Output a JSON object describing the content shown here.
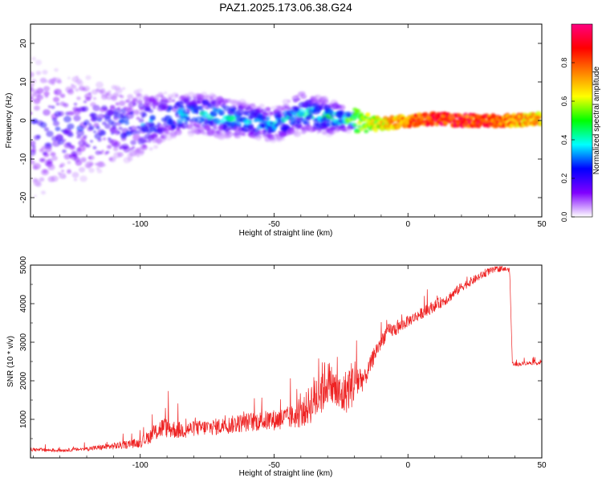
{
  "title": "PAZ1.2025.173.06.38.G24",
  "colors": {
    "snr_line": "#ee2222",
    "axis": "#000000"
  },
  "chart_data": [
    {
      "id": "spectrogram",
      "type": "heatmap",
      "xlabel": "Height of straight line (km)",
      "ylabel": "Frequency (Hz)",
      "xlim": [
        -141,
        50
      ],
      "ylim": [
        -25,
        25
      ],
      "xticks": [
        -100,
        -50,
        0,
        50
      ],
      "yticks": [
        -20,
        -10,
        0,
        10,
        20
      ],
      "grid": false,
      "colorbar": {
        "label": "Normalized spectral amplitude",
        "range": [
          0,
          1
        ],
        "ticks": [
          0.0,
          0.2,
          0.4,
          0.6,
          0.8
        ],
        "colormap": [
          "#ffffff",
          "#8000ff",
          "#0000ff",
          "#00ffff",
          "#00ff00",
          "#ffff00",
          "#ff8000",
          "#ff0000",
          "#ff0080"
        ]
      },
      "band": [
        {
          "x": -140,
          "center": -2,
          "halfwidth": 22,
          "peak": 0.22
        },
        {
          "x": -120,
          "center": -2,
          "halfwidth": 16,
          "peak": 0.24
        },
        {
          "x": -100,
          "center": -1,
          "halfwidth": 10,
          "peak": 0.3
        },
        {
          "x": -90,
          "center": 1,
          "halfwidth": 7,
          "peak": 0.35
        },
        {
          "x": -80,
          "center": 2,
          "halfwidth": 6,
          "peak": 0.38
        },
        {
          "x": -70,
          "center": 1,
          "halfwidth": 6,
          "peak": 0.4
        },
        {
          "x": -60,
          "center": 0,
          "halfwidth": 5,
          "peak": 0.4
        },
        {
          "x": -50,
          "center": -1,
          "halfwidth": 5,
          "peak": 0.38
        },
        {
          "x": -40,
          "center": 2,
          "halfwidth": 6,
          "peak": 0.4
        },
        {
          "x": -30,
          "center": 1,
          "halfwidth": 5,
          "peak": 0.45
        },
        {
          "x": -20,
          "center": 0,
          "halfwidth": 3,
          "peak": 0.55
        },
        {
          "x": -10,
          "center": -1,
          "halfwidth": 1.5,
          "peak": 0.7
        },
        {
          "x": 0,
          "center": 0,
          "halfwidth": 1.5,
          "peak": 0.85
        },
        {
          "x": 10,
          "center": 0.5,
          "halfwidth": 1.5,
          "peak": 0.95
        },
        {
          "x": 20,
          "center": 0,
          "halfwidth": 1.5,
          "peak": 0.95
        },
        {
          "x": 30,
          "center": 0,
          "halfwidth": 1.5,
          "peak": 0.9
        },
        {
          "x": 40,
          "center": 0,
          "halfwidth": 1.5,
          "peak": 0.8
        },
        {
          "x": 50,
          "center": 0.5,
          "halfwidth": 1.5,
          "peak": 0.75
        }
      ]
    },
    {
      "id": "snr",
      "type": "line",
      "xlabel": "Height of straight line (km)",
      "ylabel": "SNR (10 * v/v)",
      "xlim": [
        -141,
        50
      ],
      "ylim": [
        0,
        5000
      ],
      "xticks": [
        -100,
        -50,
        0,
        50
      ],
      "yticks": [
        1000,
        2000,
        3000,
        4000,
        5000
      ],
      "grid": false,
      "series": [
        {
          "x": [
            -141,
            -130,
            -120,
            -110,
            -100,
            -92,
            -85,
            -80,
            -70,
            -60,
            -50,
            -40,
            -33,
            -30,
            -25,
            -20,
            -16,
            -12,
            -8,
            -4,
            0,
            5,
            10,
            15,
            20,
            25,
            30,
            35,
            38,
            39,
            40,
            45,
            50
          ],
          "y": [
            200,
            180,
            220,
            280,
            350,
            700,
            650,
            700,
            750,
            850,
            900,
            1000,
            1500,
            1800,
            1400,
            1800,
            2000,
            2700,
            3200,
            3300,
            3500,
            3700,
            3900,
            4100,
            4400,
            4600,
            4800,
            4900,
            4850,
            2450,
            2400,
            2450,
            2450
          ],
          "noise": [
            100,
            80,
            100,
            180,
            250,
            550,
            450,
            400,
            450,
            500,
            550,
            650,
            1500,
            1200,
            1100,
            1300,
            450,
            450,
            400,
            350,
            300,
            300,
            300,
            280,
            250,
            220,
            200,
            150,
            100,
            80,
            100,
            100,
            100
          ]
        }
      ]
    }
  ]
}
